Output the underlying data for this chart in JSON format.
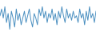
{
  "values": [
    60,
    75,
    55,
    80,
    45,
    65,
    30,
    70,
    55,
    35,
    75,
    50,
    65,
    40,
    55,
    70,
    45,
    60,
    75,
    50,
    35,
    65,
    55,
    40,
    75,
    60,
    80,
    55,
    70,
    45,
    65,
    55,
    75,
    50,
    65,
    40,
    70,
    55,
    80,
    60,
    45,
    75,
    55,
    65,
    50,
    70,
    55,
    60,
    45,
    75,
    55,
    65,
    40,
    70,
    50,
    80,
    55,
    65,
    45,
    70
  ],
  "line_color": "#4a8fc0",
  "background_color": "#ffffff",
  "ylim_min": 15,
  "ylim_max": 95
}
